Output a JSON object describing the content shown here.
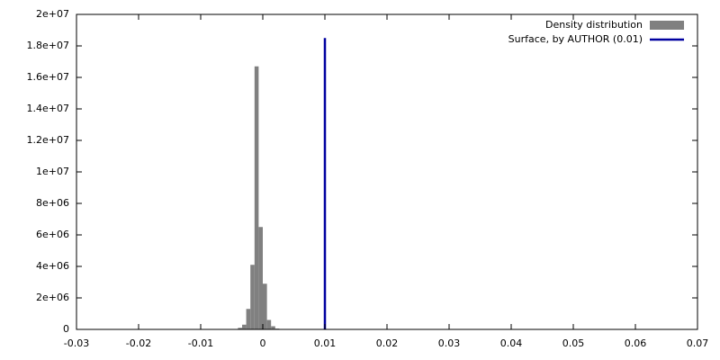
{
  "chart_data": {
    "type": "histogram",
    "name": "Density distribution",
    "color": "#808080",
    "bins": [
      -0.004,
      -0.00333,
      -0.00267,
      -0.002,
      -0.00133,
      -0.00067,
      0,
      0.00067,
      0.00133,
      0.002,
      0.00267
    ],
    "counts": [
      100000,
      300000,
      1300000,
      4100000,
      16700000,
      6500000,
      2900000,
      600000,
      200000,
      50000
    ],
    "series": [
      {
        "name": "Surface, by AUTHOR (0.01)",
        "color": "#0000a0",
        "x": [
          0.01,
          0.01
        ],
        "values": [
          0,
          18500000
        ]
      }
    ],
    "xlim": [
      -0.03,
      0.07
    ],
    "xticks": [
      -0.03,
      -0.02,
      -0.01,
      0,
      0.01,
      0.02,
      0.03,
      0.04,
      0.05,
      0.06,
      0.07
    ],
    "ylim": [
      0,
      20000000
    ],
    "yticks": [
      0,
      {
        "value": 2000000,
        "label": "2e+06"
      },
      {
        "value": 4000000,
        "label": "4e+06"
      },
      {
        "value": 6000000,
        "label": "6e+06"
      },
      {
        "value": 8000000,
        "label": "8e+06"
      },
      {
        "value": 10000000,
        "label": "1e+07"
      },
      {
        "value": 12000000,
        "label": "1.2e+07"
      },
      {
        "value": 14000000,
        "label": "1.4e+07"
      },
      {
        "value": 16000000,
        "label": "1.6e+07"
      },
      {
        "value": 18000000,
        "label": "1.8e+07"
      },
      {
        "value": 20000000,
        "label": "2e+07"
      }
    ],
    "legend": "top-right"
  }
}
